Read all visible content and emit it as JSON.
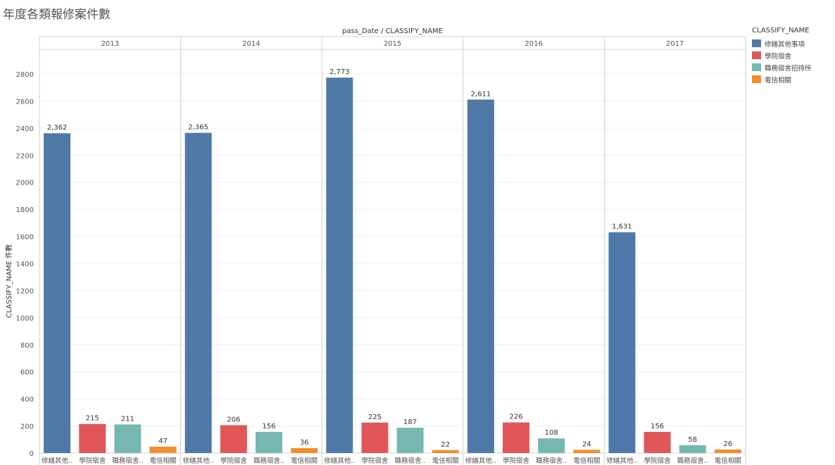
{
  "title": "年度各類報修案件數",
  "chart_data": {
    "type": "bar",
    "header": "pass_Date / CLASSIFY_NAME",
    "ylabel": "CLASSIFY_NAME 件數",
    "ylim": [
      0,
      2800
    ],
    "yticks": [
      0,
      200,
      400,
      600,
      800,
      1000,
      1200,
      1400,
      1600,
      1800,
      2000,
      2200,
      2400,
      2600,
      2800
    ],
    "grid": true,
    "legend_position": "right",
    "legend_title": "CLASSIFY_NAME",
    "categories": [
      "修繕其他事項",
      "學院宿舍",
      "職務宿舍招待所",
      "電信相關"
    ],
    "category_tick_labels": [
      "修繕其他..",
      "學院宿舍",
      "職務宿舍..",
      "電信相關"
    ],
    "colors": [
      "#4e79a7",
      "#e15759",
      "#76b7b2",
      "#f28e2b"
    ],
    "panels": [
      {
        "year": "2013",
        "values": [
          2362,
          215,
          211,
          47
        ],
        "labels": [
          "2,362",
          "215",
          "211",
          "47"
        ]
      },
      {
        "year": "2014",
        "values": [
          2365,
          206,
          156,
          36
        ],
        "labels": [
          "2,365",
          "206",
          "156",
          "36"
        ]
      },
      {
        "year": "2015",
        "values": [
          2773,
          225,
          187,
          22
        ],
        "labels": [
          "2,773",
          "225",
          "187",
          "22"
        ]
      },
      {
        "year": "2016",
        "values": [
          2611,
          226,
          108,
          24
        ],
        "labels": [
          "2,611",
          "226",
          "108",
          "24"
        ]
      },
      {
        "year": "2017",
        "values": [
          1631,
          156,
          58,
          26
        ],
        "labels": [
          "1,631",
          "156",
          "58",
          "26"
        ]
      }
    ]
  }
}
